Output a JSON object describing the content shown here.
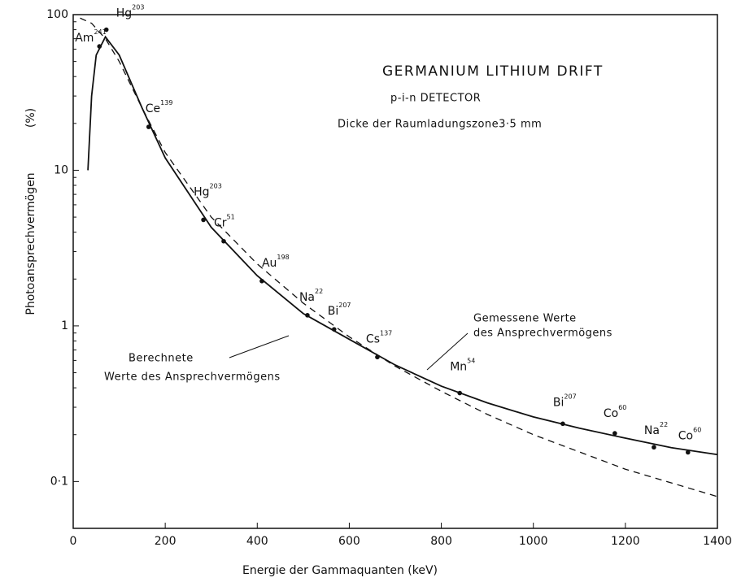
{
  "chart_data": {
    "type": "line",
    "log_y": true,
    "xlabel": "Energie der Gammaquanten (keV)",
    "ylabel": "Photoansprechvermögen",
    "ylabel_unit": "(%)",
    "xlim": [
      0,
      1400
    ],
    "ylim": [
      0.05,
      100
    ],
    "xticks": [
      0,
      200,
      400,
      600,
      800,
      1000,
      1200,
      1400
    ],
    "yticks": [
      100,
      10,
      1,
      {
        "value": 0.1,
        "label": "0·1"
      }
    ],
    "annotations": [
      "GERMANIUM LITHIUM DRIFT",
      "p-i-n DETECTOR",
      "Dicke der Raumladungszone3·5 mm",
      "Gemessene Werte",
      "des Ansprechvermögens",
      "Berechnete",
      "Werte des Ansprechvermögens"
    ],
    "series": [
      {
        "style": "solid",
        "color": "#111111",
        "x": [
          32,
          40,
          50,
          70,
          100,
          150,
          200,
          300,
          400,
          500,
          600,
          700,
          800,
          900,
          1000,
          1100,
          1200,
          1300,
          1400
        ],
        "values": [
          10,
          30,
          55,
          72,
          55,
          25,
          12,
          4.3,
          2.1,
          1.2,
          0.82,
          0.56,
          0.41,
          0.32,
          0.26,
          0.22,
          0.19,
          0.165,
          0.149
        ]
      },
      {
        "style": "dashed",
        "color": "#111111",
        "x": [
          15,
          40,
          70,
          100,
          150,
          200,
          300,
          400,
          500,
          600,
          700,
          800,
          900,
          1000,
          1200,
          1400
        ],
        "values": [
          95,
          88,
          70,
          50,
          25,
          13,
          5.0,
          2.5,
          1.4,
          0.85,
          0.55,
          0.38,
          0.27,
          0.2,
          0.12,
          0.08
        ]
      }
    ],
    "points": {
      "color": "#111111",
      "x": [
        57,
        72,
        164,
        283,
        327,
        410,
        509,
        567,
        661,
        840,
        1064,
        1177,
        1262,
        1336
      ],
      "values": [
        62.5,
        80,
        19,
        4.8,
        3.5,
        1.94,
        1.17,
        0.95,
        0.63,
        0.37,
        0.235,
        0.204,
        0.166,
        0.154
      ],
      "labels": [
        [
          "Am",
          "241"
        ],
        [
          "Hg",
          "203"
        ],
        [
          "Ce",
          "139"
        ],
        [
          "Hg",
          "203"
        ],
        [
          "Cr",
          "51"
        ],
        [
          "Au",
          "198"
        ],
        [
          "Na",
          "22"
        ],
        [
          "Bi",
          "207"
        ],
        [
          "Cs",
          "137"
        ],
        [
          "Mn",
          "54"
        ],
        [
          "Bi",
          "207"
        ],
        [
          "Co",
          "60"
        ],
        [
          "Na",
          "22"
        ],
        [
          "Co",
          "60"
        ]
      ]
    }
  }
}
